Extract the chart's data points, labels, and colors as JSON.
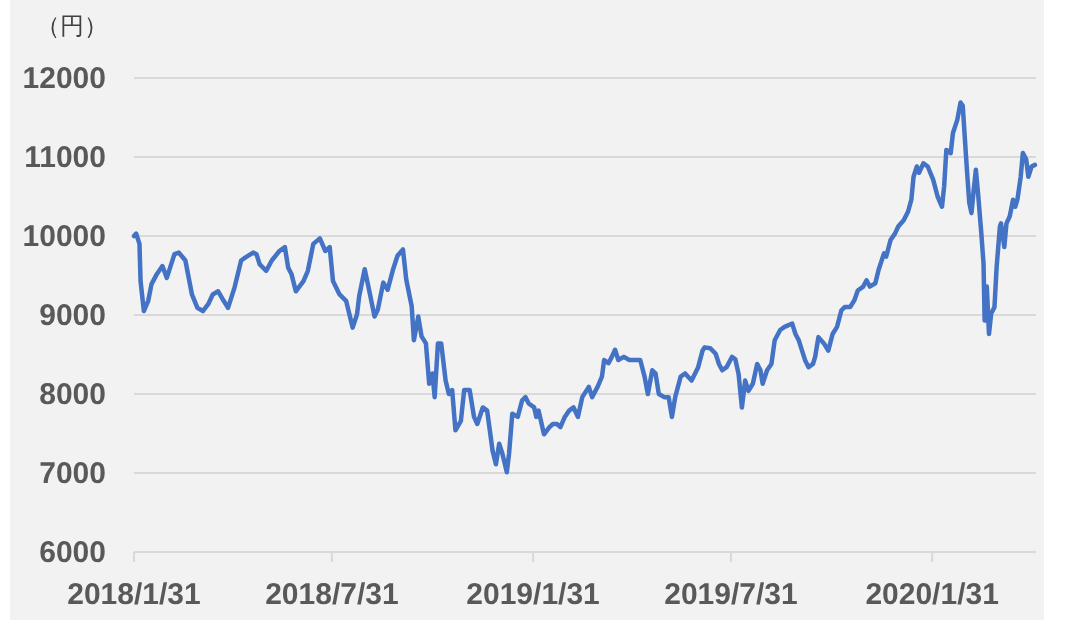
{
  "chart_data": {
    "type": "line",
    "ylabel": "（円）",
    "color": "#4472c4",
    "grid": "y",
    "marker": "none",
    "line_style": "solid",
    "xlim": [
      "2018-01-31",
      "2020-05-05"
    ],
    "ylim": [
      6000,
      12000
    ],
    "xticks": [
      {
        "value": "2018-01-31",
        "label": "2018/1/31"
      },
      {
        "value": "2018-07-31",
        "label": "2018/7/31"
      },
      {
        "value": "2019-01-31",
        "label": "2019/1/31"
      },
      {
        "value": "2019-07-31",
        "label": "2019/7/31"
      },
      {
        "value": "2020-01-31",
        "label": "2020/1/31"
      }
    ],
    "yticks": [
      6000,
      7000,
      8000,
      9000,
      10000,
      11000,
      12000
    ],
    "x": [
      "2018-01-31",
      "2018-02-02",
      "2018-02-05",
      "2018-02-06",
      "2018-02-09",
      "2018-02-13",
      "2018-02-16",
      "2018-02-21",
      "2018-02-26",
      "2018-03-02",
      "2018-03-09",
      "2018-03-13",
      "2018-03-19",
      "2018-03-25",
      "2018-03-30",
      "2018-04-04",
      "2018-04-09",
      "2018-04-13",
      "2018-04-18",
      "2018-04-23",
      "2018-04-27",
      "2018-05-03",
      "2018-05-09",
      "2018-05-13",
      "2018-05-20",
      "2018-05-23",
      "2018-05-26",
      "2018-06-01",
      "2018-06-06",
      "2018-06-13",
      "2018-06-18",
      "2018-06-21",
      "2018-06-24",
      "2018-06-28",
      "2018-07-05",
      "2018-07-09",
      "2018-07-14",
      "2018-07-20",
      "2018-07-25",
      "2018-07-29",
      "2018-08-01",
      "2018-08-07",
      "2018-08-13",
      "2018-08-19",
      "2018-08-23",
      "2018-08-25",
      "2018-08-30",
      "2018-09-03",
      "2018-09-08",
      "2018-09-11",
      "2018-09-16",
      "2018-09-20",
      "2018-09-25",
      "2018-09-29",
      "2018-10-04",
      "2018-10-07",
      "2018-10-12",
      "2018-10-14",
      "2018-10-18",
      "2018-10-21",
      "2018-10-25",
      "2018-10-28",
      "2018-10-31",
      "2018-11-02",
      "2018-11-05",
      "2018-11-08",
      "2018-11-12",
      "2018-11-15",
      "2018-11-18",
      "2018-11-21",
      "2018-11-26",
      "2018-11-29",
      "2018-12-04",
      "2018-12-08",
      "2018-12-11",
      "2018-12-16",
      "2018-12-20",
      "2018-12-25",
      "2018-12-28",
      "2018-12-31",
      "2019-01-03",
      "2019-01-07",
      "2019-01-09",
      "2019-01-12",
      "2019-01-17",
      "2019-01-21",
      "2019-01-24",
      "2019-01-27",
      "2019-02-01",
      "2019-02-03",
      "2019-02-05",
      "2019-02-10",
      "2019-02-15",
      "2019-02-18",
      "2019-02-22",
      "2019-02-25",
      "2019-03-01",
      "2019-03-05",
      "2019-03-09",
      "2019-03-13",
      "2019-03-17",
      "2019-03-23",
      "2019-03-26",
      "2019-03-31",
      "2019-04-04",
      "2019-04-06",
      "2019-04-10",
      "2019-04-13",
      "2019-04-16",
      "2019-04-19",
      "2019-04-24",
      "2019-04-29",
      "2019-05-05",
      "2019-05-09",
      "2019-05-13",
      "2019-05-16",
      "2019-05-20",
      "2019-05-23",
      "2019-05-26",
      "2019-05-31",
      "2019-06-04",
      "2019-06-07",
      "2019-06-10",
      "2019-06-15",
      "2019-06-19",
      "2019-06-25",
      "2019-07-01",
      "2019-07-05",
      "2019-07-07",
      "2019-07-12",
      "2019-07-17",
      "2019-07-20",
      "2019-07-23",
      "2019-07-27",
      "2019-08-01",
      "2019-08-04",
      "2019-08-07",
      "2019-08-10",
      "2019-08-13",
      "2019-08-16",
      "2019-08-20",
      "2019-08-24",
      "2019-08-27",
      "2019-08-29",
      "2019-09-02",
      "2019-09-06",
      "2019-09-09",
      "2019-09-14",
      "2019-09-18",
      "2019-09-25",
      "2019-09-28",
      "2019-10-01",
      "2019-10-04",
      "2019-10-07",
      "2019-10-10",
      "2019-10-14",
      "2019-10-16",
      "2019-10-19",
      "2019-10-24",
      "2019-10-28",
      "2019-11-01",
      "2019-11-05",
      "2019-11-09",
      "2019-11-12",
      "2019-11-17",
      "2019-11-21",
      "2019-11-24",
      "2019-11-29",
      "2019-12-02",
      "2019-12-05",
      "2019-12-10",
      "2019-12-13",
      "2019-12-18",
      "2019-12-20",
      "2019-12-24",
      "2019-12-28",
      "2019-12-31",
      "2020-01-05",
      "2020-01-09",
      "2020-01-12",
      "2020-01-14",
      "2020-01-17",
      "2020-01-19",
      "2020-01-23",
      "2020-01-27",
      "2020-02-01",
      "2020-02-05",
      "2020-02-09",
      "2020-02-11",
      "2020-02-13",
      "2020-02-17",
      "2020-02-19",
      "2020-02-23",
      "2020-02-26",
      "2020-02-28",
      "2020-03-01",
      "2020-03-03",
      "2020-03-05",
      "2020-03-07",
      "2020-03-09",
      "2020-03-11",
      "2020-03-13",
      "2020-03-16",
      "2020-03-18",
      "2020-03-19",
      "2020-03-21",
      "2020-03-23",
      "2020-03-25",
      "2020-03-28",
      "2020-03-30",
      "2020-04-02",
      "2020-04-03",
      "2020-04-06",
      "2020-04-08",
      "2020-04-11",
      "2020-04-14",
      "2020-04-16",
      "2020-04-18",
      "2020-04-21",
      "2020-04-23",
      "2020-04-26",
      "2020-04-28",
      "2020-05-01",
      "2020-05-04"
    ],
    "values": [
      10000,
      10030,
      9900,
      9430,
      9050,
      9180,
      9390,
      9520,
      9620,
      9470,
      9770,
      9790,
      9690,
      9260,
      9090,
      9050,
      9140,
      9260,
      9300,
      9180,
      9090,
      9350,
      9690,
      9730,
      9790,
      9770,
      9640,
      9560,
      9690,
      9810,
      9860,
      9600,
      9520,
      9300,
      9430,
      9560,
      9900,
      9970,
      9810,
      9860,
      9430,
      9260,
      9180,
      8840,
      9010,
      9240,
      9580,
      9320,
      8980,
      9070,
      9410,
      9320,
      9580,
      9750,
      9830,
      9450,
      9110,
      8680,
      8980,
      8730,
      8640,
      8130,
      8260,
      7960,
      8640,
      8640,
      8170,
      8000,
      8050,
      7540,
      7660,
      8050,
      8050,
      7710,
      7620,
      7830,
      7790,
      7280,
      7110,
      7370,
      7240,
      7010,
      7240,
      7750,
      7710,
      7920,
      7960,
      7880,
      7830,
      7710,
      7790,
      7490,
      7580,
      7620,
      7620,
      7580,
      7710,
      7790,
      7830,
      7710,
      7960,
      8090,
      7960,
      8090,
      8220,
      8430,
      8390,
      8470,
      8560,
      8430,
      8470,
      8430,
      8430,
      8430,
      8220,
      8000,
      8300,
      8260,
      8000,
      7960,
      7960,
      7710,
      7960,
      8220,
      8260,
      8170,
      8340,
      8550,
      8590,
      8580,
      8510,
      8380,
      8300,
      8340,
      8470,
      8440,
      8250,
      7830,
      8170,
      8040,
      8130,
      8380,
      8300,
      8130,
      8300,
      8380,
      8680,
      8810,
      8850,
      8890,
      8760,
      8680,
      8550,
      8420,
      8340,
      8380,
      8470,
      8720,
      8640,
      8550,
      8760,
      8850,
      9060,
      9100,
      9100,
      9190,
      9310,
      9360,
      9440,
      9360,
      9400,
      9570,
      9780,
      9740,
      9950,
      10030,
      10120,
      10200,
      10310,
      10460,
      10750,
      10880,
      10800,
      10920,
      10880,
      10710,
      10500,
      10370,
      10630,
      11090,
      11050,
      11300,
      11470,
      11690,
      11650,
      11220,
      10800,
      10420,
      10290,
      10580,
      10840,
      10540,
      10030,
      9650,
      8930,
      9360,
      8760,
      9020,
      9100,
      9610,
      10120,
      10160,
      9860,
      10160,
      10250,
      10460,
      10370,
      10460,
      10750,
      11050,
      10970,
      10750,
      10880,
      10900
    ]
  }
}
